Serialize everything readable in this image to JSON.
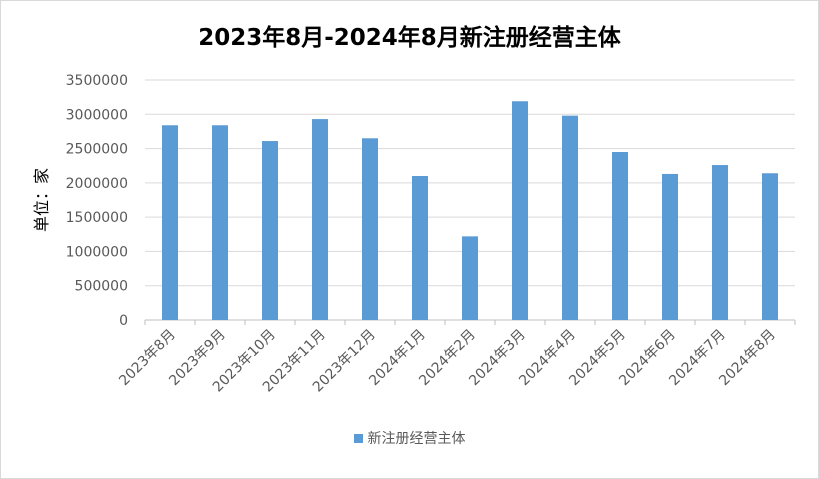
{
  "chart_data": {
    "type": "bar",
    "title": "2023年8月-2024年8月新注册经营主体",
    "ylabel": "单位：家",
    "xlabel": "",
    "categories": [
      "2023年8月",
      "2023年9月",
      "2023年10月",
      "2023年11月",
      "2023年12月",
      "2024年1月",
      "2024年2月",
      "2024年3月",
      "2024年4月",
      "2024年5月",
      "2024年6月",
      "2024年7月",
      "2024年8月"
    ],
    "series": [
      {
        "name": "新注册经营主体",
        "values": [
          2840000,
          2840000,
          2610000,
          2930000,
          2650000,
          2100000,
          1220000,
          3190000,
          2980000,
          2450000,
          2130000,
          2260000,
          2140000
        ]
      }
    ],
    "ylim": [
      0,
      3500000
    ],
    "yticks": [
      "0",
      "500000",
      "1000000",
      "1500000",
      "2000000",
      "2500000",
      "3000000",
      "3500000"
    ],
    "grid": true,
    "legend_position": "bottom",
    "bar_color": "#5b9bd5"
  }
}
